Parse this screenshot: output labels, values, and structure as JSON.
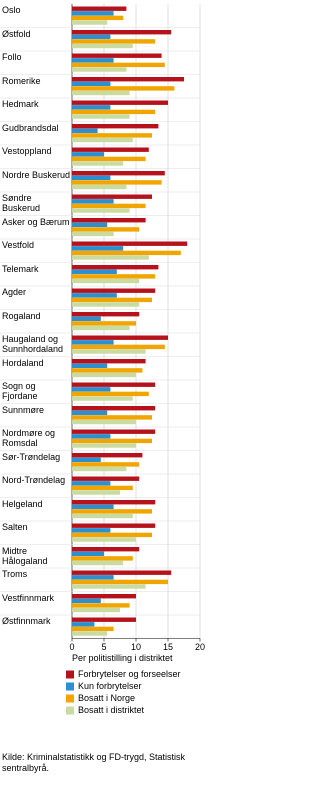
{
  "chart_data": {
    "type": "hbar",
    "xlabel": "Per politistilling i distriktet",
    "source": "Kilde: Kriminalstatistikk og FD-trygd, Statistisk sentralbyrå.",
    "categories": [
      "Oslo",
      "Østfold",
      "Follo",
      "Romerike",
      "Hedmark",
      "Gudbrandsdal",
      "Vestoppland",
      "Nordre Buskerud",
      "Søndre Buskerud",
      "Asker og Bærum",
      "Vestfold",
      "Telemark",
      "Agder",
      "Rogaland",
      "Haugaland og Sunnhordaland",
      "Hordaland",
      "Sogn og Fjordane",
      "Sunnmøre",
      "Nordmøre og Romsdal",
      "Sør-Trøndelag",
      "Nord-Trøndelag",
      "Helgeland",
      "Salten",
      "Midtre Hålogaland",
      "Troms",
      "Vestfinnmark",
      "Østfinnmark"
    ],
    "series": [
      {
        "name": "Forbrytelser og forseelser",
        "color": "#b5121b",
        "values": [
          8.5,
          15.5,
          14,
          17.5,
          15,
          13.5,
          12,
          14.5,
          12.5,
          11.5,
          18,
          13.5,
          13,
          10.5,
          15,
          11.5,
          13,
          13,
          13,
          11,
          10.5,
          13,
          13,
          10.5,
          15.5,
          10,
          10
        ]
      },
      {
        "name": "Kun forbrytelser",
        "color": "#2b8fd0",
        "values": [
          6.5,
          6,
          6.5,
          6,
          6,
          4,
          5,
          6,
          6.5,
          5.5,
          8,
          7,
          7,
          4.5,
          6.5,
          5.5,
          6,
          5.5,
          6,
          4.5,
          6,
          6.5,
          6,
          5,
          6.5,
          4.5,
          3.5
        ]
      },
      {
        "name": "Bosatt i Norge",
        "color": "#f0a500",
        "values": [
          8,
          13,
          14.5,
          16,
          13,
          12.5,
          11.5,
          14,
          11.5,
          10.5,
          17,
          13,
          12.5,
          10,
          14.5,
          11,
          12,
          12.5,
          12.5,
          10.5,
          9.5,
          12.5,
          12.5,
          9.5,
          15,
          9,
          6.5
        ]
      },
      {
        "name": "Bosatt i distriktet",
        "color": "#c9dba0",
        "values": [
          5.5,
          9.5,
          8.5,
          9,
          9,
          9.5,
          8,
          8.5,
          9,
          6.5,
          12,
          10.5,
          10.5,
          9,
          11.5,
          10,
          9.5,
          10,
          10,
          8.5,
          7.5,
          9.5,
          10,
          8,
          11.5,
          7.5,
          5.5
        ]
      }
    ],
    "xlim": [
      0,
      20
    ],
    "xticks": [
      0,
      5,
      10,
      15,
      20
    ],
    "grid": true
  }
}
